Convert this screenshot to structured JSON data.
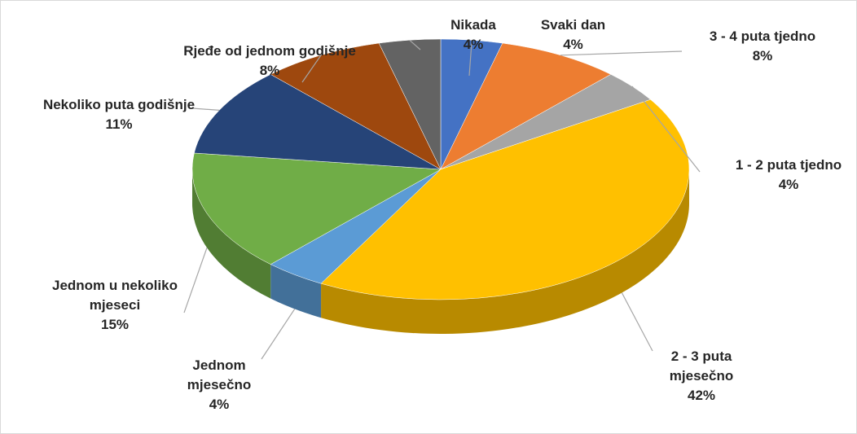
{
  "chart_data": {
    "type": "pie",
    "categories": [
      "Svaki dan",
      "3 - 4 puta tjedno",
      "1 - 2 puta tjedno",
      "2 - 3 puta mjesečno",
      "Jednom mjesečno",
      "Jednom u nekoliko mjeseci",
      "Nekoliko puta godišnje",
      "Rjeđe od jednom godišnje",
      "Nikada"
    ],
    "values": [
      4,
      8,
      4,
      42,
      4,
      15,
      11,
      8,
      4
    ],
    "value_labels": [
      "4%",
      "8%",
      "4%",
      "42%",
      "4%",
      "15%",
      "11%",
      "8%",
      "4%"
    ],
    "colors": [
      "#4472c4",
      "#ed7d31",
      "#a5a5a5",
      "#ffc000",
      "#5b9bd5",
      "#70ad47",
      "#264478",
      "#9e480e",
      "#636363"
    ]
  }
}
